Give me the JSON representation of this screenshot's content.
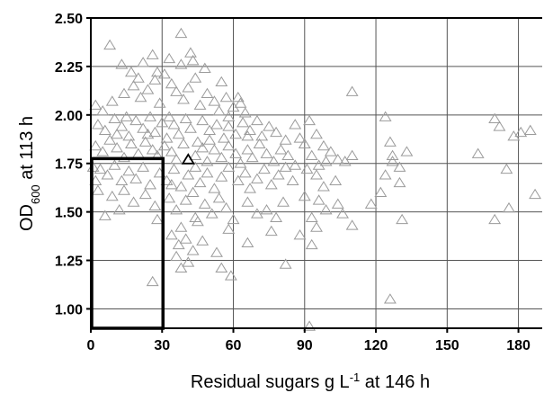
{
  "chart_data": {
    "type": "scatter",
    "title": "",
    "xlabel": "Residual sugars g L",
    "xlabel_sup": "-1",
    "xlabel_suffix": " at 146 h",
    "ylabel": "OD",
    "ylabel_sub": "600",
    "ylabel_suffix": " at 113 h",
    "xlim": [
      0,
      190
    ],
    "ylim": [
      0.9,
      2.5
    ],
    "xticks": [
      0,
      30,
      60,
      90,
      120,
      150,
      180
    ],
    "yticks": [
      1.0,
      1.25,
      1.5,
      1.75,
      2.0,
      2.25,
      2.5
    ],
    "ytick_labels": [
      "1.00",
      "1.25",
      "1.50",
      "1.75",
      "2.00",
      "2.25",
      "2.50"
    ],
    "grid": true,
    "marker": "open-triangle",
    "colors": {
      "points": "#9b9b9b",
      "highlight": "#000000",
      "grid": "#555555"
    },
    "highlight_region": {
      "x": [
        0,
        30
      ],
      "y": [
        0.9,
        1.775
      ]
    },
    "highlight_point": {
      "x": 41,
      "y": 1.77
    },
    "points": [
      [
        8,
        2.36
      ],
      [
        13,
        2.26
      ],
      [
        17,
        2.22
      ],
      [
        22,
        2.27
      ],
      [
        26,
        2.31
      ],
      [
        33,
        2.29
      ],
      [
        38,
        2.26
      ],
      [
        43,
        2.28
      ],
      [
        38,
        2.42
      ],
      [
        42,
        2.32
      ],
      [
        48,
        2.24
      ],
      [
        55,
        2.17
      ],
      [
        2,
        2.05
      ],
      [
        5,
        2.02
      ],
      [
        9,
        2.07
      ],
      [
        14,
        2.11
      ],
      [
        18,
        2.15
      ],
      [
        21,
        2.09
      ],
      [
        24,
        2.13
      ],
      [
        27,
        2.18
      ],
      [
        29,
        2.06
      ],
      [
        31,
        2.21
      ],
      [
        34,
        2.16
      ],
      [
        36,
        2.12
      ],
      [
        39,
        2.08
      ],
      [
        41,
        2.14
      ],
      [
        44,
        2.19
      ],
      [
        46,
        2.05
      ],
      [
        49,
        2.11
      ],
      [
        52,
        2.07
      ],
      [
        54,
        2.02
      ],
      [
        57,
        2.09
      ],
      [
        60,
        2.04
      ],
      [
        63,
        2.06
      ],
      [
        65,
        2.01
      ],
      [
        3,
        1.95
      ],
      [
        6,
        1.92
      ],
      [
        10,
        1.98
      ],
      [
        13,
        1.94
      ],
      [
        16,
        1.89
      ],
      [
        19,
        1.97
      ],
      [
        22,
        1.93
      ],
      [
        25,
        1.99
      ],
      [
        27,
        1.91
      ],
      [
        30,
        1.96
      ],
      [
        32,
        1.88
      ],
      [
        35,
        1.95
      ],
      [
        37,
        1.9
      ],
      [
        40,
        1.98
      ],
      [
        42,
        1.93
      ],
      [
        45,
        1.86
      ],
      [
        47,
        1.97
      ],
      [
        50,
        1.92
      ],
      [
        53,
        1.95
      ],
      [
        56,
        1.88
      ],
      [
        58,
        1.94
      ],
      [
        61,
        1.9
      ],
      [
        64,
        1.96
      ],
      [
        67,
        1.92
      ],
      [
        70,
        1.97
      ],
      [
        72,
        1.89
      ],
      [
        75,
        1.94
      ],
      [
        78,
        1.91
      ],
      [
        2,
        1.84
      ],
      [
        5,
        1.81
      ],
      [
        8,
        1.87
      ],
      [
        11,
        1.83
      ],
      [
        14,
        1.78
      ],
      [
        17,
        1.85
      ],
      [
        20,
        1.8
      ],
      [
        23,
        1.86
      ],
      [
        26,
        1.82
      ],
      [
        28,
        1.79
      ],
      [
        31,
        1.84
      ],
      [
        34,
        1.81
      ],
      [
        36,
        1.77
      ],
      [
        39,
        1.85
      ],
      [
        44,
        1.79
      ],
      [
        47,
        1.83
      ],
      [
        49,
        1.76
      ],
      [
        52,
        1.82
      ],
      [
        55,
        1.78
      ],
      [
        58,
        1.84
      ],
      [
        61,
        1.8
      ],
      [
        63,
        1.75
      ],
      [
        66,
        1.82
      ],
      [
        68,
        1.78
      ],
      [
        71,
        1.85
      ],
      [
        74,
        1.8
      ],
      [
        77,
        1.76
      ],
      [
        80,
        1.82
      ],
      [
        83,
        1.79
      ],
      [
        4,
        1.72
      ],
      [
        7,
        1.69
      ],
      [
        10,
        1.74
      ],
      [
        13,
        1.66
      ],
      [
        16,
        1.71
      ],
      [
        19,
        1.67
      ],
      [
        22,
        1.73
      ],
      [
        25,
        1.64
      ],
      [
        29,
        1.7
      ],
      [
        32,
        1.66
      ],
      [
        35,
        1.72
      ],
      [
        38,
        1.63
      ],
      [
        41,
        1.69
      ],
      [
        44,
        1.73
      ],
      [
        46,
        1.65
      ],
      [
        49,
        1.7
      ],
      [
        52,
        1.62
      ],
      [
        55,
        1.68
      ],
      [
        58,
        1.73
      ],
      [
        62,
        1.66
      ],
      [
        65,
        1.7
      ],
      [
        67,
        1.62
      ],
      [
        70,
        1.67
      ],
      [
        73,
        1.72
      ],
      [
        76,
        1.64
      ],
      [
        79,
        1.69
      ],
      [
        82,
        1.73
      ],
      [
        85,
        1.66
      ],
      [
        9,
        1.58
      ],
      [
        14,
        1.61
      ],
      [
        18,
        1.55
      ],
      [
        23,
        1.59
      ],
      [
        27,
        1.53
      ],
      [
        33,
        1.57
      ],
      [
        36,
        1.51
      ],
      [
        40,
        1.56
      ],
      [
        43,
        1.6
      ],
      [
        48,
        1.54
      ],
      [
        51,
        1.49
      ],
      [
        54,
        1.57
      ],
      [
        57,
        1.52
      ],
      [
        60,
        1.46
      ],
      [
        66,
        1.55
      ],
      [
        70,
        1.49
      ],
      [
        74,
        1.51
      ],
      [
        78,
        1.47
      ],
      [
        81,
        1.55
      ],
      [
        6,
        1.48
      ],
      [
        12,
        1.51
      ],
      [
        28,
        1.46
      ],
      [
        38,
        1.42
      ],
      [
        45,
        1.45
      ],
      [
        34,
        1.38
      ],
      [
        37,
        1.33
      ],
      [
        40,
        1.36
      ],
      [
        43,
        1.3
      ],
      [
        36,
        1.27
      ],
      [
        38,
        1.21
      ],
      [
        41,
        1.24
      ],
      [
        47,
        1.35
      ],
      [
        53,
        1.29
      ],
      [
        55,
        1.21
      ],
      [
        59,
        1.17
      ],
      [
        66,
        1.34
      ],
      [
        82,
        1.23
      ],
      [
        88,
        1.38
      ],
      [
        26,
        1.14
      ],
      [
        92,
        0.91
      ],
      [
        1,
        1.73
      ],
      [
        2,
        1.66
      ],
      [
        3,
        1.61
      ],
      [
        86,
        1.95
      ],
      [
        88,
        1.88
      ],
      [
        90,
        1.85
      ],
      [
        92,
        1.97
      ],
      [
        95,
        1.9
      ],
      [
        98,
        1.84
      ],
      [
        86,
        1.74
      ],
      [
        91,
        1.72
      ],
      [
        93,
        1.79
      ],
      [
        96,
        1.74
      ],
      [
        99,
        1.76
      ],
      [
        101,
        1.81
      ],
      [
        104,
        1.77
      ],
      [
        107,
        1.76
      ],
      [
        110,
        1.79
      ],
      [
        95,
        1.69
      ],
      [
        98,
        1.63
      ],
      [
        103,
        1.66
      ],
      [
        90,
        1.58
      ],
      [
        96,
        1.56
      ],
      [
        99,
        1.51
      ],
      [
        104,
        1.54
      ],
      [
        106,
        1.49
      ],
      [
        93,
        1.47
      ],
      [
        95,
        1.42
      ],
      [
        93,
        1.33
      ],
      [
        110,
        2.12
      ],
      [
        124,
        1.99
      ],
      [
        126,
        1.86
      ],
      [
        127,
        1.79
      ],
      [
        130,
        1.73
      ],
      [
        122,
        1.6
      ],
      [
        124,
        1.69
      ],
      [
        127,
        1.76
      ],
      [
        130,
        1.65
      ],
      [
        118,
        1.54
      ],
      [
        131,
        1.46
      ],
      [
        126,
        1.05
      ],
      [
        133,
        1.81
      ],
      [
        163,
        1.8
      ],
      [
        170,
        1.98
      ],
      [
        172,
        1.94
      ],
      [
        175,
        1.72
      ],
      [
        178,
        1.89
      ],
      [
        181,
        1.91
      ],
      [
        185,
        1.92
      ],
      [
        176,
        1.52
      ],
      [
        170,
        1.46
      ],
      [
        187,
        1.59
      ],
      [
        110,
        1.43
      ],
      [
        76,
        1.4
      ],
      [
        58,
        1.41
      ],
      [
        44,
        1.47
      ],
      [
        34,
        1.64
      ],
      [
        50,
        1.87
      ],
      [
        20,
        2.19
      ],
      [
        28,
        2.22
      ],
      [
        15,
        1.99
      ],
      [
        33,
        1.99
      ],
      [
        58,
        1.99
      ],
      [
        62,
        2.09
      ],
      [
        66,
        1.89
      ],
      [
        82,
        1.87
      ],
      [
        11,
        1.9
      ],
      [
        24,
        1.9
      ]
    ]
  }
}
